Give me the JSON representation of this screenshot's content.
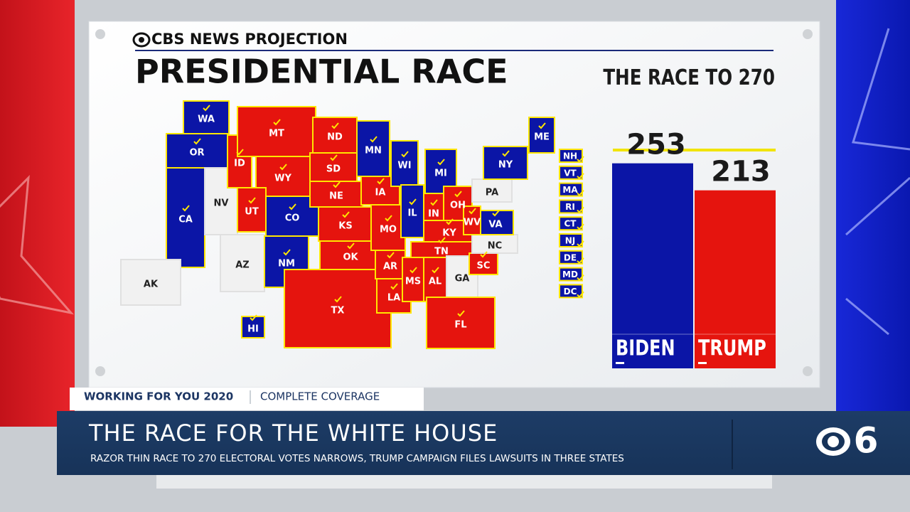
{
  "header": {
    "projection": "CBS NEWS PROJECTION",
    "title": "PRESIDENTIAL RACE"
  },
  "map": {
    "states": [
      {
        "label": "WA",
        "color": "#0b15a6"
      },
      {
        "label": "OR",
        "color": "#0b15a6"
      },
      {
        "label": "CA",
        "color": "#0b15a6"
      },
      {
        "label": "NV",
        "color": "#f1f1f1"
      },
      {
        "label": "ID",
        "color": "#e5140e"
      },
      {
        "label": "MT",
        "color": "#e5140e"
      },
      {
        "label": "WY",
        "color": "#e5140e"
      },
      {
        "label": "UT",
        "color": "#e5140e"
      },
      {
        "label": "CO",
        "color": "#0b15a6"
      },
      {
        "label": "AZ",
        "color": "#f1f1f1"
      },
      {
        "label": "NM",
        "color": "#0b15a6"
      },
      {
        "label": "ND",
        "color": "#e5140e"
      },
      {
        "label": "SD",
        "color": "#e5140e"
      },
      {
        "label": "NE",
        "color": "#e5140e"
      },
      {
        "label": "KS",
        "color": "#e5140e"
      },
      {
        "label": "OK",
        "color": "#e5140e"
      },
      {
        "label": "TX",
        "color": "#e5140e"
      },
      {
        "label": "MN",
        "color": "#0b15a6"
      },
      {
        "label": "IA",
        "color": "#e5140e"
      },
      {
        "label": "MO",
        "color": "#e5140e"
      },
      {
        "label": "AR",
        "color": "#e5140e"
      },
      {
        "label": "LA",
        "color": "#e5140e"
      },
      {
        "label": "WI",
        "color": "#0b15a6"
      },
      {
        "label": "IL",
        "color": "#0b15a6"
      },
      {
        "label": "MI",
        "color": "#0b15a6"
      },
      {
        "label": "IN",
        "color": "#e5140e"
      },
      {
        "label": "OH",
        "color": "#e5140e"
      },
      {
        "label": "KY",
        "color": "#e5140e"
      },
      {
        "label": "TN",
        "color": "#e5140e"
      },
      {
        "label": "MS",
        "color": "#e5140e"
      },
      {
        "label": "AL",
        "color": "#e5140e"
      },
      {
        "label": "GA",
        "color": "#f1f1f1"
      },
      {
        "label": "FL",
        "color": "#e5140e"
      },
      {
        "label": "SC",
        "color": "#e5140e"
      },
      {
        "label": "NC",
        "color": "#f1f1f1"
      },
      {
        "label": "VA",
        "color": "#0b15a6"
      },
      {
        "label": "WV",
        "color": "#e5140e"
      },
      {
        "label": "PA",
        "color": "#f1f1f1"
      },
      {
        "label": "NY",
        "color": "#0b15a6"
      },
      {
        "label": "ME",
        "color": "#0b15a6"
      },
      {
        "label": "AK",
        "color": "#f1f1f1"
      },
      {
        "label": "HI",
        "color": "#0b15a6"
      }
    ],
    "small_states": [
      {
        "label": "NH",
        "color": "#0b15a6"
      },
      {
        "label": "VT",
        "color": "#0b15a6"
      },
      {
        "label": "MA",
        "color": "#0b15a6"
      },
      {
        "label": "RI",
        "color": "#0b15a6"
      },
      {
        "label": "CT",
        "color": "#0b15a6"
      },
      {
        "label": "NJ",
        "color": "#0b15a6"
      },
      {
        "label": "DE",
        "color": "#0b15a6"
      },
      {
        "label": "MD",
        "color": "#0b15a6"
      },
      {
        "label": "DC",
        "color": "#0b15a6"
      }
    ]
  },
  "race": {
    "title": "THE RACE TO 270",
    "candidates": [
      {
        "name": "BIDEN",
        "votes": 253,
        "color": "#0b15a6"
      },
      {
        "name": "TRUMP",
        "votes": 213,
        "color": "#e5140e"
      }
    ]
  },
  "lower_third": {
    "tag": "WORKING FOR YOU 2020",
    "section": "COMPLETE COVERAGE",
    "headline": "THE RACE FOR THE WHITE HOUSE",
    "subhead": "RAZOR THIN RACE TO 270 ELECTORAL VOTES NARROWS, TRUMP CAMPAIGN FILES LAWSUITS IN THREE STATES",
    "channel": "6"
  }
}
